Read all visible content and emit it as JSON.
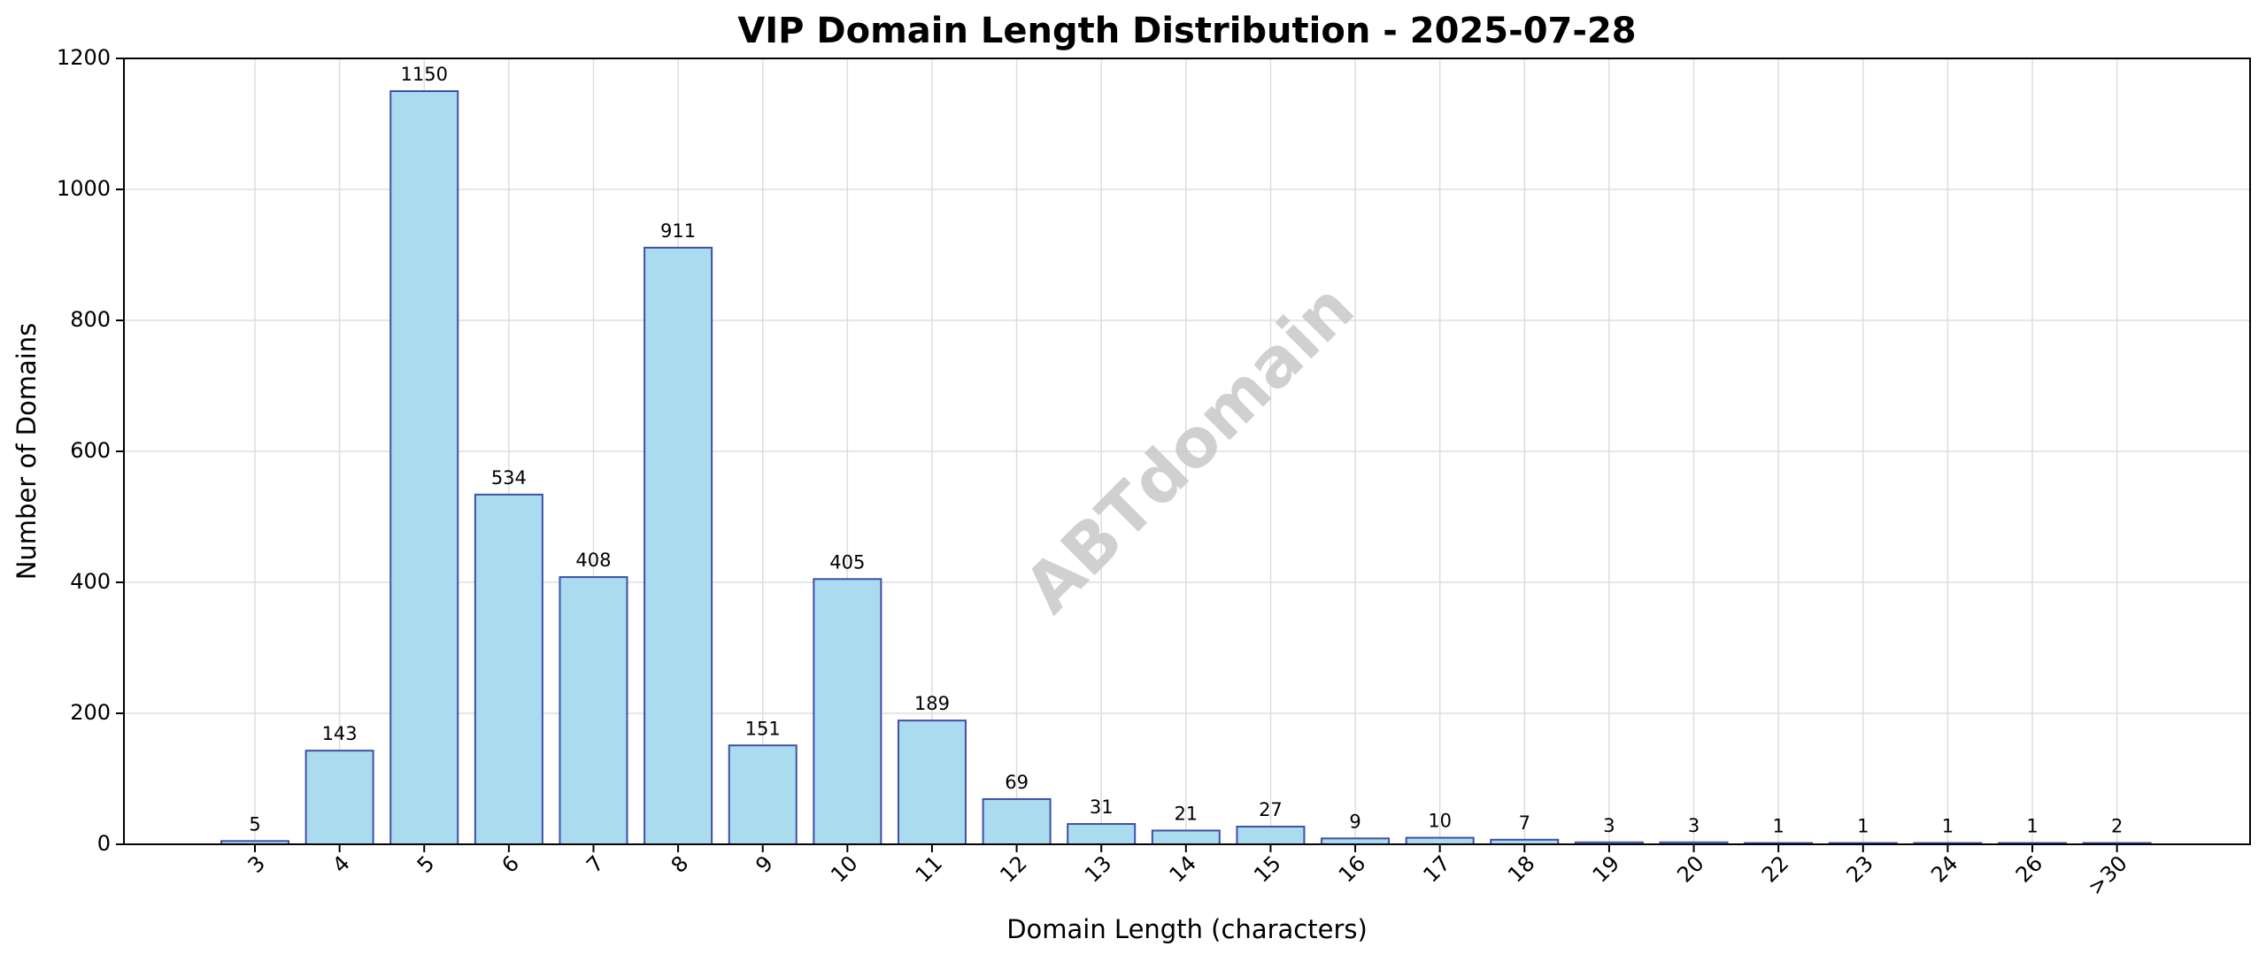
{
  "chart_data": {
    "type": "bar",
    "title": "VIP Domain Length Distribution - 2025-07-28",
    "xlabel": "Domain Length (characters)",
    "ylabel": "Number of Domains",
    "categories": [
      "3",
      "4",
      "5",
      "6",
      "7",
      "8",
      "9",
      "10",
      "11",
      "12",
      "13",
      "14",
      "15",
      "16",
      "17",
      "18",
      "19",
      "20",
      "22",
      "23",
      "24",
      "26",
      ">30"
    ],
    "values": [
      5,
      143,
      1150,
      534,
      408,
      911,
      151,
      405,
      189,
      69,
      31,
      21,
      27,
      9,
      10,
      7,
      3,
      3,
      1,
      1,
      1,
      1,
      2
    ],
    "ylim": [
      0,
      1200
    ],
    "yticks": [
      0,
      200,
      400,
      600,
      800,
      1000,
      1200
    ],
    "grid": true,
    "bar_color": "#abdbef",
    "bar_edge_color": "#3f4fa8",
    "watermark": "ABTdomain"
  }
}
